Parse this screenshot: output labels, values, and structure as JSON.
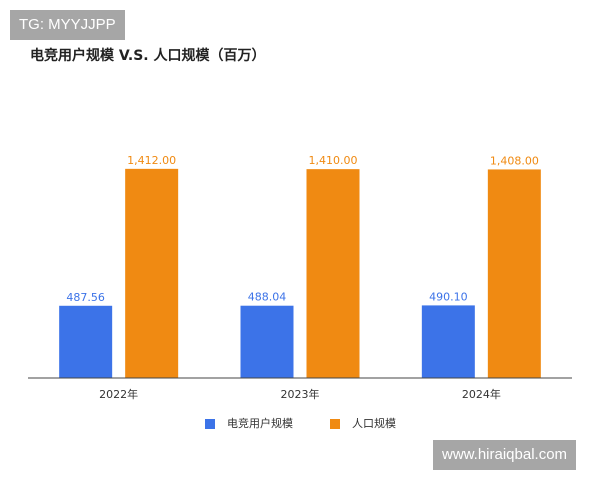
{
  "watermark_top": "TG: MYYJJPP",
  "watermark_bottom": "www.hiraiqbal.com",
  "chart_data": {
    "type": "bar",
    "title": "电竞用户规模 V.S. 人口规模（百万）",
    "categories": [
      "2022年",
      "2023年",
      "2024年"
    ],
    "series": [
      {
        "name": "电竞用户规模",
        "color": "#3c73e8",
        "values": [
          487.56,
          488.04,
          490.1
        ],
        "value_labels": [
          "487.56",
          "488.04",
          "490.10"
        ]
      },
      {
        "name": "人口规模",
        "color": "#f08a12",
        "values": [
          1412.0,
          1410.0,
          1408.0
        ],
        "value_labels": [
          "1,412.00",
          "1,410.00",
          "1,408.00"
        ]
      }
    ],
    "ylim": [
      0,
      1600
    ],
    "legend": "bottom"
  }
}
